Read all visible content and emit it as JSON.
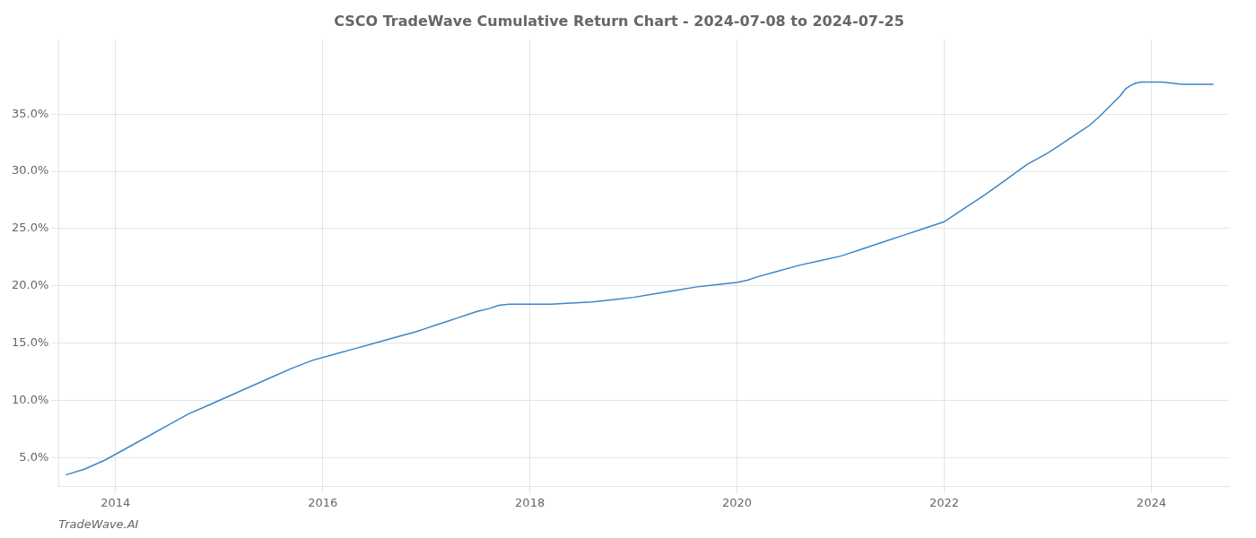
{
  "chart_data": {
    "type": "line",
    "title": "CSCO TradeWave Cumulative Return Chart - 2024-07-08 to 2024-07-25",
    "annotations": [
      "TradeWave.AI"
    ],
    "color": "#3d85c8",
    "grid": true,
    "x": [
      2013.52,
      2013.7,
      2013.9,
      2014.1,
      2014.3,
      2014.5,
      2014.7,
      2014.9,
      2015.1,
      2015.3,
      2015.5,
      2015.7,
      2015.9,
      2016.1,
      2016.3,
      2016.5,
      2016.7,
      2016.9,
      2017.0,
      2017.1,
      2017.2,
      2017.3,
      2017.4,
      2017.5,
      2017.6,
      2017.7,
      2017.8,
      2017.9,
      2018.0,
      2018.1,
      2018.2,
      2018.4,
      2018.6,
      2018.8,
      2019.0,
      2019.2,
      2019.4,
      2019.6,
      2019.8,
      2020.0,
      2020.1,
      2020.2,
      2020.4,
      2020.6,
      2020.8,
      2021.0,
      2021.2,
      2021.4,
      2021.6,
      2021.8,
      2022.0,
      2022.1,
      2022.2,
      2022.3,
      2022.4,
      2022.6,
      2022.8,
      2023.0,
      2023.1,
      2023.2,
      2023.3,
      2023.4,
      2023.5,
      2023.6,
      2023.7,
      2023.75,
      2023.8,
      2023.85,
      2023.9,
      2023.95,
      2024.0,
      2024.1,
      2024.2,
      2024.3,
      2024.5,
      2024.6
    ],
    "values": [
      0.035,
      0.04,
      0.048,
      0.058,
      0.068,
      0.078,
      0.088,
      0.096,
      0.104,
      0.112,
      0.12,
      0.128,
      0.135,
      0.14,
      0.145,
      0.15,
      0.155,
      0.16,
      0.163,
      0.166,
      0.169,
      0.172,
      0.175,
      0.178,
      0.18,
      0.183,
      0.184,
      0.184,
      0.184,
      0.184,
      0.184,
      0.185,
      0.186,
      0.188,
      0.19,
      0.193,
      0.196,
      0.199,
      0.201,
      0.203,
      0.205,
      0.208,
      0.213,
      0.218,
      0.222,
      0.226,
      0.232,
      0.238,
      0.244,
      0.25,
      0.256,
      0.262,
      0.268,
      0.274,
      0.28,
      0.293,
      0.306,
      0.316,
      0.322,
      0.328,
      0.334,
      0.34,
      0.348,
      0.357,
      0.366,
      0.372,
      0.375,
      0.377,
      0.378,
      0.378,
      0.378,
      0.378,
      0.377,
      0.376,
      0.376,
      0.376
    ],
    "xlim": [
      2013.45,
      2024.75
    ],
    "xticks": [
      2014,
      2016,
      2018,
      2020,
      2022,
      2024
    ],
    "ylim": [
      0.025,
      0.415
    ],
    "yticks": [
      {
        "value": 0.05,
        "label": "5.0%"
      },
      {
        "value": 0.1,
        "label": "10.0%"
      },
      {
        "value": 0.15,
        "label": "15.0%"
      },
      {
        "value": 0.2,
        "label": "20.0%"
      },
      {
        "value": 0.25,
        "label": "25.0%"
      },
      {
        "value": 0.3,
        "label": "30.0%"
      },
      {
        "value": 0.35,
        "label": "35.0%"
      }
    ]
  }
}
